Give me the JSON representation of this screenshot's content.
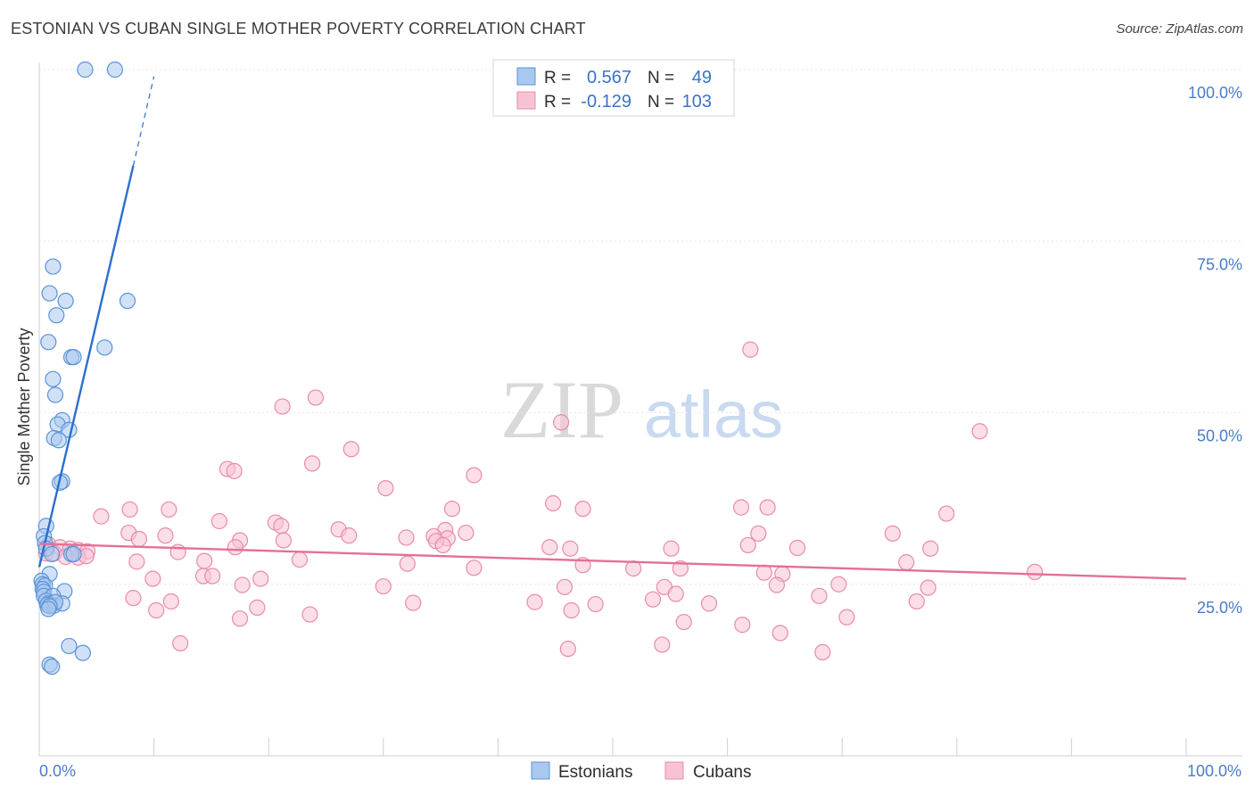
{
  "title": "ESTONIAN VS CUBAN SINGLE MOTHER POVERTY CORRELATION CHART",
  "source": "Source: ZipAtlas.com",
  "colors": {
    "estonians_fill": "#a9c8ef",
    "estonians_stroke": "#5b93d8",
    "estonians_line": "#2a6fcf",
    "cubans_fill": "#f7c3d4",
    "cubans_stroke": "#e98bab",
    "cubans_line": "#e46f97",
    "tick_label": "#4a7cc9",
    "grid": "#e6e6e6"
  },
  "legend_top": {
    "rows": [
      {
        "r_label": "R =",
        "r_value": "0.567",
        "n_label": "N =",
        "n_value": "49"
      },
      {
        "r_label": "R =",
        "r_value": "-0.129",
        "n_label": "N =",
        "n_value": "103"
      }
    ]
  },
  "watermark": {
    "zip": "ZIP",
    "atlas": "atlas"
  },
  "chart_data": {
    "type": "scatter",
    "title": "ESTONIAN VS CUBAN SINGLE MOTHER POVERTY CORRELATION CHART",
    "xlabel": "",
    "ylabel": "Single Mother Poverty",
    "xlim": [
      0,
      100
    ],
    "ylim": [
      0,
      100
    ],
    "x_tick_labels": [
      "0.0%",
      "100.0%"
    ],
    "y_ticks": [
      25,
      50,
      75,
      100
    ],
    "y_tick_labels": [
      "25.0%",
      "50.0%",
      "75.0%",
      "100.0%"
    ],
    "grid": true,
    "legend_position": "bottom-center",
    "series": [
      {
        "name": "Estonians",
        "R": 0.567,
        "N": 49,
        "trend": {
          "x0": 0.0,
          "y0": 27.5,
          "x1": 8.2,
          "y1": 86.0,
          "dash_x1": 10.0,
          "dash_y1": 99.0
        },
        "points": [
          [
            4.0,
            100
          ],
          [
            6.6,
            100
          ],
          [
            1.2,
            71.3
          ],
          [
            0.9,
            67.4
          ],
          [
            2.3,
            66.3
          ],
          [
            7.7,
            66.3
          ],
          [
            1.5,
            64.2
          ],
          [
            0.8,
            60.3
          ],
          [
            5.7,
            59.5
          ],
          [
            2.8,
            58.1
          ],
          [
            3.0,
            58.1
          ],
          [
            1.2,
            54.9
          ],
          [
            1.4,
            52.6
          ],
          [
            2.0,
            48.9
          ],
          [
            1.6,
            48.3
          ],
          [
            2.6,
            47.5
          ],
          [
            1.3,
            46.3
          ],
          [
            1.7,
            46.0
          ],
          [
            2.0,
            40.0
          ],
          [
            1.8,
            39.8
          ],
          [
            0.6,
            33.5
          ],
          [
            0.4,
            32.0
          ],
          [
            0.5,
            31.0
          ],
          [
            0.6,
            30.2
          ],
          [
            1.1,
            29.4
          ],
          [
            2.8,
            29.4
          ],
          [
            3.0,
            29.4
          ],
          [
            0.9,
            26.5
          ],
          [
            0.2,
            25.5
          ],
          [
            0.3,
            25.0
          ],
          [
            0.5,
            24.8
          ],
          [
            0.3,
            24.3
          ],
          [
            0.4,
            23.9
          ],
          [
            2.2,
            24.0
          ],
          [
            0.4,
            23.3
          ],
          [
            1.2,
            23.3
          ],
          [
            0.6,
            22.6
          ],
          [
            0.8,
            22.2
          ],
          [
            1.0,
            21.9
          ],
          [
            0.7,
            22.0
          ],
          [
            1.3,
            21.9
          ],
          [
            2.0,
            22.2
          ],
          [
            1.4,
            22.4
          ],
          [
            0.9,
            21.8
          ],
          [
            2.6,
            16.0
          ],
          [
            3.8,
            15.0
          ],
          [
            0.9,
            13.3
          ],
          [
            1.1,
            13.0
          ],
          [
            0.8,
            21.4
          ]
        ]
      },
      {
        "name": "Cubans",
        "R": -0.129,
        "N": 103,
        "trend": {
          "x0": 0.0,
          "y0": 30.9,
          "x1": 100.0,
          "y1": 25.8
        },
        "points": [
          [
            62.0,
            59.2
          ],
          [
            24.1,
            52.2
          ],
          [
            21.2,
            50.9
          ],
          [
            45.5,
            48.6
          ],
          [
            82.0,
            47.3
          ],
          [
            27.2,
            44.7
          ],
          [
            23.8,
            42.6
          ],
          [
            16.4,
            41.8
          ],
          [
            17.0,
            41.5
          ],
          [
            37.9,
            40.9
          ],
          [
            30.2,
            39.0
          ],
          [
            44.8,
            36.8
          ],
          [
            61.2,
            36.2
          ],
          [
            63.5,
            36.2
          ],
          [
            36.0,
            36.0
          ],
          [
            47.4,
            36.0
          ],
          [
            7.9,
            35.9
          ],
          [
            11.3,
            35.9
          ],
          [
            79.1,
            35.3
          ],
          [
            5.4,
            34.9
          ],
          [
            15.7,
            34.2
          ],
          [
            20.6,
            34.0
          ],
          [
            21.1,
            33.5
          ],
          [
            26.1,
            33.0
          ],
          [
            35.4,
            32.9
          ],
          [
            7.8,
            32.5
          ],
          [
            11.0,
            32.1
          ],
          [
            27.0,
            32.1
          ],
          [
            34.4,
            32.0
          ],
          [
            35.6,
            31.7
          ],
          [
            37.2,
            32.5
          ],
          [
            62.7,
            32.4
          ],
          [
            74.4,
            32.4
          ],
          [
            8.7,
            31.6
          ],
          [
            17.5,
            31.4
          ],
          [
            21.3,
            31.4
          ],
          [
            32.0,
            31.8
          ],
          [
            34.6,
            31.3
          ],
          [
            35.2,
            30.7
          ],
          [
            0.8,
            30.8
          ],
          [
            1.8,
            30.4
          ],
          [
            2.7,
            30.2
          ],
          [
            3.4,
            30.0
          ],
          [
            4.2,
            29.8
          ],
          [
            12.1,
            29.7
          ],
          [
            17.1,
            30.4
          ],
          [
            44.5,
            30.4
          ],
          [
            46.3,
            30.2
          ],
          [
            55.1,
            30.2
          ],
          [
            77.7,
            30.2
          ],
          [
            61.8,
            30.7
          ],
          [
            66.1,
            30.3
          ],
          [
            0.6,
            29.5
          ],
          [
            1.3,
            29.5
          ],
          [
            2.3,
            29.0
          ],
          [
            3.4,
            28.9
          ],
          [
            4.1,
            29.1
          ],
          [
            8.5,
            28.3
          ],
          [
            14.4,
            28.4
          ],
          [
            22.7,
            28.6
          ],
          [
            32.1,
            28.0
          ],
          [
            37.9,
            27.4
          ],
          [
            47.4,
            27.8
          ],
          [
            51.8,
            27.3
          ],
          [
            55.9,
            27.3
          ],
          [
            63.2,
            26.7
          ],
          [
            64.8,
            26.5
          ],
          [
            75.6,
            28.2
          ],
          [
            86.8,
            26.8
          ],
          [
            14.3,
            26.2
          ],
          [
            15.1,
            26.2
          ],
          [
            9.9,
            25.8
          ],
          [
            19.3,
            25.8
          ],
          [
            17.7,
            24.9
          ],
          [
            30.0,
            24.7
          ],
          [
            45.8,
            24.6
          ],
          [
            54.5,
            24.6
          ],
          [
            55.5,
            23.6
          ],
          [
            64.3,
            24.9
          ],
          [
            68.0,
            23.3
          ],
          [
            69.7,
            25.0
          ],
          [
            77.5,
            24.5
          ],
          [
            76.5,
            22.5
          ],
          [
            8.2,
            23.0
          ],
          [
            11.5,
            22.5
          ],
          [
            32.6,
            22.3
          ],
          [
            43.2,
            22.4
          ],
          [
            46.4,
            21.2
          ],
          [
            48.5,
            22.1
          ],
          [
            53.5,
            22.8
          ],
          [
            58.4,
            22.2
          ],
          [
            19.0,
            21.6
          ],
          [
            23.6,
            20.6
          ],
          [
            10.2,
            21.2
          ],
          [
            17.5,
            20.0
          ],
          [
            56.2,
            19.5
          ],
          [
            61.3,
            19.1
          ],
          [
            70.4,
            20.2
          ],
          [
            64.6,
            17.9
          ],
          [
            12.3,
            16.4
          ],
          [
            54.3,
            16.2
          ],
          [
            46.1,
            15.6
          ],
          [
            68.3,
            15.1
          ]
        ]
      }
    ]
  },
  "legend_bottom": {
    "items": [
      "Estonians",
      "Cubans"
    ]
  }
}
